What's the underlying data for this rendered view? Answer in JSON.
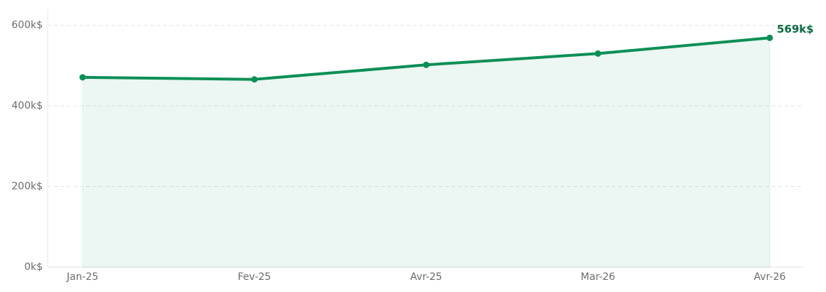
{
  "chart_data": {
    "type": "area",
    "categories": [
      "Jan-25",
      "Fev-25",
      "Avr-25",
      "Mar-26",
      "Avr-26"
    ],
    "series": [
      {
        "color": "#0b8f56",
        "values": [
          471,
          466,
          502,
          530,
          569
        ],
        "value_labels": [
          null,
          null,
          null,
          null,
          "569k$"
        ]
      }
    ],
    "ylim": [
      0,
      640
    ],
    "yticks": [
      {
        "value": 0,
        "label": "0k$"
      },
      {
        "value": 200,
        "label": "200k$"
      },
      {
        "value": 400,
        "label": "400k$"
      },
      {
        "value": 600,
        "label": "600k$"
      }
    ],
    "grid": true
  }
}
